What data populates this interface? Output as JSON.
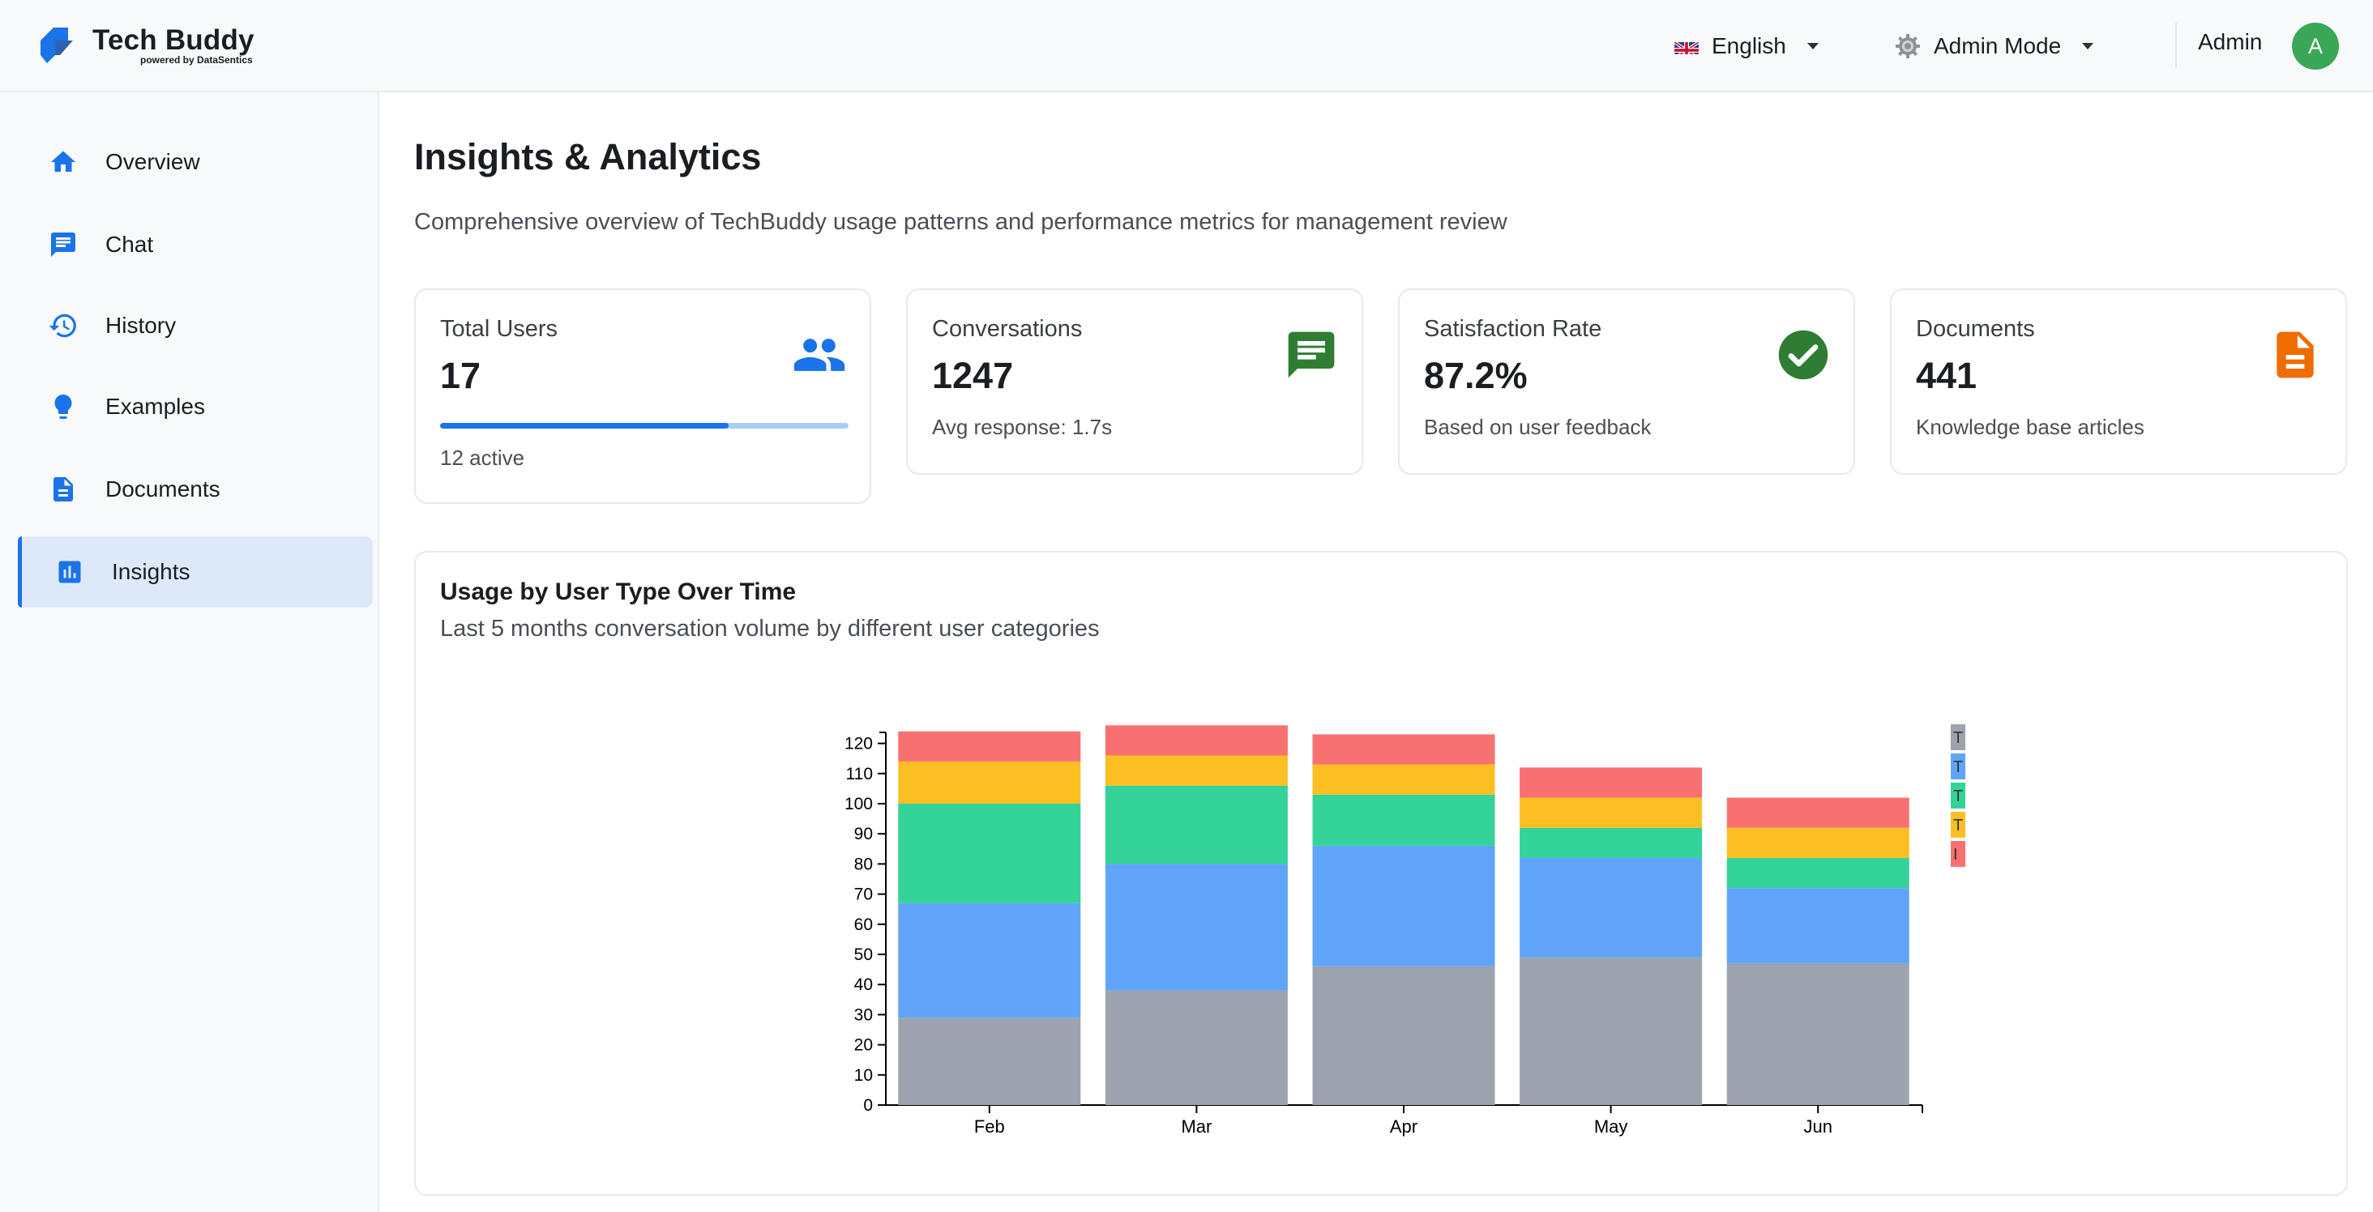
{
  "brand": {
    "name": "Tech Buddy",
    "sub": "powered by DataSentics"
  },
  "header": {
    "language": "English",
    "mode": "Admin Mode",
    "user_name": "Admin",
    "avatar_letter": "A"
  },
  "sidebar": {
    "items": [
      {
        "label": "Overview",
        "icon": "home-icon"
      },
      {
        "label": "Chat",
        "icon": "chat-icon"
      },
      {
        "label": "History",
        "icon": "history-icon"
      },
      {
        "label": "Examples",
        "icon": "lightbulb-icon"
      },
      {
        "label": "Documents",
        "icon": "document-icon"
      },
      {
        "label": "Insights",
        "icon": "insights-icon",
        "active": true
      }
    ]
  },
  "page": {
    "title": "Insights & Analytics",
    "subtitle": "Comprehensive overview of TechBuddy usage patterns and performance metrics for management review"
  },
  "cards": {
    "users": {
      "label": "Total Users",
      "value": "17",
      "note": "12 active",
      "progress": 0.706,
      "icon": "users-icon"
    },
    "conversations": {
      "label": "Conversations",
      "value": "1247",
      "note": "Avg response: 1.7s",
      "icon": "message-icon"
    },
    "satisfaction": {
      "label": "Satisfaction Rate",
      "value": "87.2%",
      "note": "Based on user feedback",
      "icon": "check-circle-icon"
    },
    "documents": {
      "label": "Documents",
      "value": "441",
      "note": "Knowledge base articles",
      "icon": "file-icon"
    }
  },
  "colors": {
    "accent": "#1a73e8",
    "active_nav_bg": "#dde9f9",
    "avatar": "#3aa757",
    "satisfaction_icon": "#2e7d32",
    "conversations_icon": "#2e7d32",
    "documents_icon": "#ef6c00"
  },
  "chart": {
    "title": "Usage by User Type Over Time",
    "subtitle": "Last 5 months conversation volume by different user categories"
  },
  "chart_data": {
    "type": "bar",
    "stacked": true,
    "categories": [
      "Feb",
      "Mar",
      "Apr",
      "May",
      "Jun"
    ],
    "ylim": [
      0,
      125
    ],
    "yticks": [
      0,
      10,
      20,
      30,
      40,
      50,
      60,
      70,
      80,
      90,
      100,
      110,
      120
    ],
    "series": [
      {
        "legend": "T",
        "color": "#9ca3af",
        "values": [
          29,
          38,
          46,
          49,
          47
        ]
      },
      {
        "legend": "T",
        "color": "#60a5fa",
        "values": [
          38,
          42,
          40,
          33,
          25
        ]
      },
      {
        "legend": "T",
        "color": "#34d399",
        "values": [
          33,
          26,
          17,
          10,
          10
        ]
      },
      {
        "legend": "T",
        "color": "#fbbf24",
        "values": [
          14,
          10,
          10,
          10,
          10
        ]
      },
      {
        "legend": "I",
        "color": "#f87171",
        "values": [
          10,
          10,
          10,
          10,
          10
        ]
      }
    ]
  }
}
